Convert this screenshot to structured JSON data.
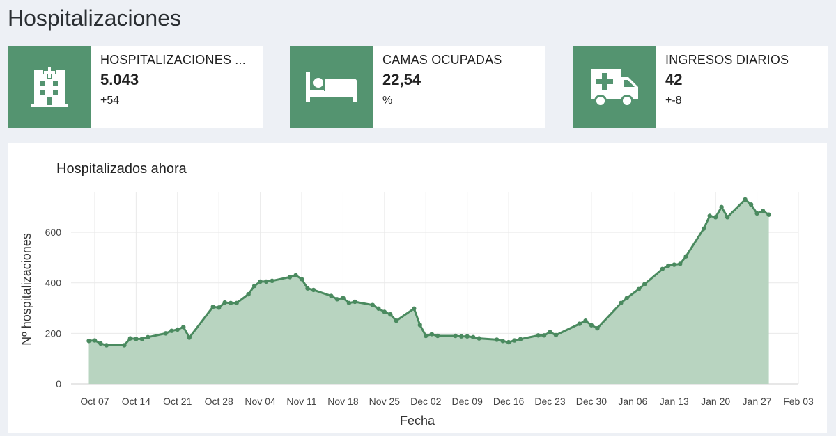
{
  "header": {
    "title": "Hospitalizaciones"
  },
  "cards": [
    {
      "label": "HOSPITALIZACIONES ...",
      "value": "5.043",
      "delta": "+54",
      "icon": "hospital-building-icon"
    },
    {
      "label": "CAMAS OCUPADAS",
      "value": "22,54",
      "delta": "%",
      "icon": "bed-icon"
    },
    {
      "label": "INGRESOS DIARIOS",
      "value": "42",
      "delta": "+-8",
      "icon": "ambulance-icon"
    }
  ],
  "colors": {
    "accent": "#549470",
    "line": "#4a8a5f",
    "fill": "#b8d4c0"
  },
  "chart_data": {
    "type": "area",
    "title": "Hospitalizados ahora",
    "xlabel": "Fecha",
    "ylabel": "Nº hospitalizaciones",
    "xlim": [
      "2020-10-03",
      "2021-02-03"
    ],
    "ylim": [
      0,
      760
    ],
    "yticks": [
      0,
      200,
      400,
      600
    ],
    "xticks": [
      {
        "date": "2020-10-07",
        "label": "Oct 07"
      },
      {
        "date": "2020-10-14",
        "label": "Oct 14"
      },
      {
        "date": "2020-10-21",
        "label": "Oct 21"
      },
      {
        "date": "2020-10-28",
        "label": "Oct 28"
      },
      {
        "date": "2020-11-04",
        "label": "Nov 04"
      },
      {
        "date": "2020-11-11",
        "label": "Nov 11"
      },
      {
        "date": "2020-11-18",
        "label": "Nov 18"
      },
      {
        "date": "2020-11-25",
        "label": "Nov 25"
      },
      {
        "date": "2020-12-02",
        "label": "Dec 02"
      },
      {
        "date": "2020-12-09",
        "label": "Dec 09"
      },
      {
        "date": "2020-12-16",
        "label": "Dec 16"
      },
      {
        "date": "2020-12-23",
        "label": "Dec 23"
      },
      {
        "date": "2020-12-30",
        "label": "Dec 30"
      },
      {
        "date": "2021-01-06",
        "label": "Jan 06"
      },
      {
        "date": "2021-01-13",
        "label": "Jan 13"
      },
      {
        "date": "2021-01-20",
        "label": "Jan 20"
      },
      {
        "date": "2021-01-27",
        "label": "Jan 27"
      },
      {
        "date": "2021-02-03",
        "label": "Feb 03"
      }
    ],
    "grid": true,
    "series": [
      {
        "points": [
          [
            "2020-10-06",
            170
          ],
          [
            "2020-10-07",
            172
          ],
          [
            "2020-10-08",
            160
          ],
          [
            "2020-10-09",
            153
          ],
          [
            "2020-10-12",
            153
          ],
          [
            "2020-10-13",
            180
          ],
          [
            "2020-10-14",
            178
          ],
          [
            "2020-10-15",
            178
          ],
          [
            "2020-10-16",
            185
          ],
          [
            "2020-10-19",
            200
          ],
          [
            "2020-10-20",
            210
          ],
          [
            "2020-10-21",
            215
          ],
          [
            "2020-10-22",
            225
          ],
          [
            "2020-10-23",
            183
          ],
          [
            "2020-10-27",
            305
          ],
          [
            "2020-10-28",
            302
          ],
          [
            "2020-10-29",
            322
          ],
          [
            "2020-10-30",
            320
          ],
          [
            "2020-10-31",
            320
          ],
          [
            "2020-11-02",
            355
          ],
          [
            "2020-11-03",
            388
          ],
          [
            "2020-11-04",
            405
          ],
          [
            "2020-11-05",
            405
          ],
          [
            "2020-11-06",
            408
          ],
          [
            "2020-11-09",
            423
          ],
          [
            "2020-11-10",
            430
          ],
          [
            "2020-11-11",
            415
          ],
          [
            "2020-11-12",
            378
          ],
          [
            "2020-11-13",
            372
          ],
          [
            "2020-11-16",
            348
          ],
          [
            "2020-11-17",
            335
          ],
          [
            "2020-11-18",
            340
          ],
          [
            "2020-11-19",
            320
          ],
          [
            "2020-11-20",
            325
          ],
          [
            "2020-11-23",
            312
          ],
          [
            "2020-11-24",
            298
          ],
          [
            "2020-11-25",
            285
          ],
          [
            "2020-11-26",
            275
          ],
          [
            "2020-11-27",
            250
          ],
          [
            "2020-11-30",
            298
          ],
          [
            "2020-12-01",
            233
          ],
          [
            "2020-12-02",
            190
          ],
          [
            "2020-12-03",
            197
          ],
          [
            "2020-12-04",
            190
          ],
          [
            "2020-12-07",
            190
          ],
          [
            "2020-12-08",
            188
          ],
          [
            "2020-12-09",
            188
          ],
          [
            "2020-12-10",
            185
          ],
          [
            "2020-12-11",
            180
          ],
          [
            "2020-12-14",
            175
          ],
          [
            "2020-12-15",
            170
          ],
          [
            "2020-12-16",
            165
          ],
          [
            "2020-12-17",
            172
          ],
          [
            "2020-12-18",
            177
          ],
          [
            "2020-12-21",
            192
          ],
          [
            "2020-12-22",
            192
          ],
          [
            "2020-12-23",
            205
          ],
          [
            "2020-12-24",
            193
          ],
          [
            "2020-12-28",
            238
          ],
          [
            "2020-12-29",
            250
          ],
          [
            "2020-12-30",
            232
          ],
          [
            "2020-12-31",
            220
          ],
          [
            "2021-01-04",
            320
          ],
          [
            "2021-01-05",
            340
          ],
          [
            "2021-01-07",
            375
          ],
          [
            "2021-01-08",
            395
          ],
          [
            "2021-01-11",
            455
          ],
          [
            "2021-01-12",
            468
          ],
          [
            "2021-01-13",
            472
          ],
          [
            "2021-01-14",
            475
          ],
          [
            "2021-01-15",
            505
          ],
          [
            "2021-01-18",
            615
          ],
          [
            "2021-01-19",
            665
          ],
          [
            "2021-01-20",
            660
          ],
          [
            "2021-01-21",
            700
          ],
          [
            "2021-01-22",
            660
          ],
          [
            "2021-01-25",
            730
          ],
          [
            "2021-01-26",
            710
          ],
          [
            "2021-01-27",
            675
          ],
          [
            "2021-01-28",
            685
          ],
          [
            "2021-01-29",
            670
          ]
        ]
      }
    ]
  }
}
